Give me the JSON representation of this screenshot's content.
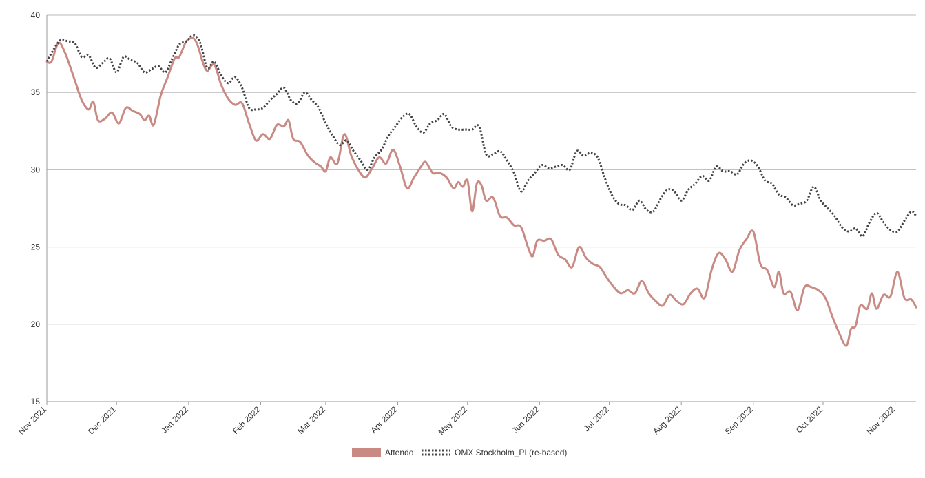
{
  "chart_data": {
    "type": "line",
    "title": "",
    "xlabel": "",
    "ylabel": "",
    "ylim": [
      15,
      40
    ],
    "yticks": [
      15,
      20,
      25,
      30,
      35,
      40
    ],
    "xlim": [
      "2021-11-01",
      "2022-11-10"
    ],
    "xtick_labels": [
      "Nov 2021",
      "Dec 2021",
      "Jan 2022",
      "Feb 2022",
      "Mar 2022",
      "Apr 2022",
      "May 2022",
      "Jun 2022",
      "Jul 2022",
      "Aug 2022",
      "Sep 2022",
      "Oct 2022",
      "Nov 2022"
    ],
    "xtick_dates": [
      "2021-11-01",
      "2021-12-01",
      "2022-01-01",
      "2022-02-01",
      "2022-03-01",
      "2022-04-01",
      "2022-05-01",
      "2022-06-01",
      "2022-07-01",
      "2022-08-01",
      "2022-09-01",
      "2022-10-01",
      "2022-11-01"
    ],
    "grid": "horizontal",
    "legend_position": "bottom-center",
    "series": [
      {
        "name": "Attendo",
        "color": "#c98a84",
        "style": "solid",
        "points": [
          [
            "2021-11-01",
            37.0
          ],
          [
            "2021-11-03",
            37.0
          ],
          [
            "2021-11-06",
            38.2
          ],
          [
            "2021-11-09",
            37.5
          ],
          [
            "2021-11-13",
            35.8
          ],
          [
            "2021-11-16",
            34.5
          ],
          [
            "2021-11-19",
            33.9
          ],
          [
            "2021-11-21",
            34.4
          ],
          [
            "2021-11-23",
            33.2
          ],
          [
            "2021-11-26",
            33.3
          ],
          [
            "2021-11-29",
            33.7
          ],
          [
            "2021-12-02",
            33.0
          ],
          [
            "2021-12-05",
            34.0
          ],
          [
            "2021-12-08",
            33.8
          ],
          [
            "2021-12-11",
            33.6
          ],
          [
            "2021-12-13",
            33.2
          ],
          [
            "2021-12-15",
            33.5
          ],
          [
            "2021-12-17",
            32.9
          ],
          [
            "2021-12-20",
            34.8
          ],
          [
            "2021-12-23",
            36.0
          ],
          [
            "2021-12-26",
            37.2
          ],
          [
            "2021-12-28",
            37.3
          ],
          [
            "2021-12-31",
            38.3
          ],
          [
            "2022-01-03",
            38.5
          ],
          [
            "2022-01-05",
            38.0
          ],
          [
            "2022-01-07",
            37.0
          ],
          [
            "2022-01-09",
            36.4
          ],
          [
            "2022-01-12",
            36.8
          ],
          [
            "2022-01-15",
            35.5
          ],
          [
            "2022-01-18",
            34.6
          ],
          [
            "2022-01-21",
            34.2
          ],
          [
            "2022-01-24",
            34.3
          ],
          [
            "2022-01-27",
            33.0
          ],
          [
            "2022-01-30",
            31.9
          ],
          [
            "2022-02-02",
            32.3
          ],
          [
            "2022-02-05",
            32.0
          ],
          [
            "2022-02-08",
            32.9
          ],
          [
            "2022-02-11",
            32.8
          ],
          [
            "2022-02-13",
            33.2
          ],
          [
            "2022-02-15",
            32.0
          ],
          [
            "2022-02-18",
            31.8
          ],
          [
            "2022-02-21",
            31.0
          ],
          [
            "2022-02-24",
            30.5
          ],
          [
            "2022-02-27",
            30.2
          ],
          [
            "2022-03-01",
            29.9
          ],
          [
            "2022-03-03",
            30.8
          ],
          [
            "2022-03-06",
            30.4
          ],
          [
            "2022-03-09",
            32.3
          ],
          [
            "2022-03-12",
            30.9
          ],
          [
            "2022-03-15",
            30.0
          ],
          [
            "2022-03-18",
            29.5
          ],
          [
            "2022-03-21",
            30.1
          ],
          [
            "2022-03-24",
            30.8
          ],
          [
            "2022-03-27",
            30.4
          ],
          [
            "2022-03-30",
            31.3
          ],
          [
            "2022-04-02",
            30.2
          ],
          [
            "2022-04-05",
            28.8
          ],
          [
            "2022-04-08",
            29.5
          ],
          [
            "2022-04-11",
            30.2
          ],
          [
            "2022-04-13",
            30.5
          ],
          [
            "2022-04-16",
            29.8
          ],
          [
            "2022-04-19",
            29.8
          ],
          [
            "2022-04-22",
            29.5
          ],
          [
            "2022-04-25",
            28.8
          ],
          [
            "2022-04-27",
            29.2
          ],
          [
            "2022-04-29",
            28.9
          ],
          [
            "2022-05-01",
            29.3
          ],
          [
            "2022-05-03",
            27.3
          ],
          [
            "2022-05-05",
            29.1
          ],
          [
            "2022-05-07",
            29.0
          ],
          [
            "2022-05-09",
            28.0
          ],
          [
            "2022-05-12",
            28.2
          ],
          [
            "2022-05-15",
            27.0
          ],
          [
            "2022-05-18",
            26.9
          ],
          [
            "2022-05-21",
            26.4
          ],
          [
            "2022-05-24",
            26.3
          ],
          [
            "2022-05-27",
            25.0
          ],
          [
            "2022-05-29",
            24.4
          ],
          [
            "2022-05-31",
            25.4
          ],
          [
            "2022-06-03",
            25.4
          ],
          [
            "2022-06-06",
            25.5
          ],
          [
            "2022-06-09",
            24.5
          ],
          [
            "2022-06-12",
            24.2
          ],
          [
            "2022-06-15",
            23.7
          ],
          [
            "2022-06-18",
            25.0
          ],
          [
            "2022-06-21",
            24.3
          ],
          [
            "2022-06-24",
            23.9
          ],
          [
            "2022-06-27",
            23.7
          ],
          [
            "2022-06-30",
            23.0
          ],
          [
            "2022-07-03",
            22.4
          ],
          [
            "2022-07-06",
            22.0
          ],
          [
            "2022-07-09",
            22.2
          ],
          [
            "2022-07-12",
            22.0
          ],
          [
            "2022-07-15",
            22.8
          ],
          [
            "2022-07-18",
            22.0
          ],
          [
            "2022-07-21",
            21.5
          ],
          [
            "2022-07-24",
            21.2
          ],
          [
            "2022-07-27",
            21.9
          ],
          [
            "2022-07-30",
            21.5
          ],
          [
            "2022-08-02",
            21.3
          ],
          [
            "2022-08-05",
            22.0
          ],
          [
            "2022-08-08",
            22.3
          ],
          [
            "2022-08-11",
            21.7
          ],
          [
            "2022-08-14",
            23.5
          ],
          [
            "2022-08-17",
            24.6
          ],
          [
            "2022-08-20",
            24.2
          ],
          [
            "2022-08-23",
            23.4
          ],
          [
            "2022-08-26",
            24.8
          ],
          [
            "2022-08-29",
            25.5
          ],
          [
            "2022-09-01",
            26.0
          ],
          [
            "2022-09-04",
            23.9
          ],
          [
            "2022-09-07",
            23.5
          ],
          [
            "2022-09-10",
            22.4
          ],
          [
            "2022-09-12",
            23.4
          ],
          [
            "2022-09-14",
            22.0
          ],
          [
            "2022-09-17",
            22.1
          ],
          [
            "2022-09-20",
            20.9
          ],
          [
            "2022-09-23",
            22.4
          ],
          [
            "2022-09-26",
            22.4
          ],
          [
            "2022-09-29",
            22.2
          ],
          [
            "2022-10-02",
            21.7
          ],
          [
            "2022-10-05",
            20.5
          ],
          [
            "2022-10-08",
            19.4
          ],
          [
            "2022-10-11",
            18.6
          ],
          [
            "2022-10-13",
            19.7
          ],
          [
            "2022-10-15",
            19.9
          ],
          [
            "2022-10-17",
            21.2
          ],
          [
            "2022-10-20",
            21.0
          ],
          [
            "2022-10-22",
            22.0
          ],
          [
            "2022-10-24",
            21.0
          ],
          [
            "2022-10-27",
            21.9
          ],
          [
            "2022-10-30",
            21.8
          ],
          [
            "2022-11-02",
            23.4
          ],
          [
            "2022-11-05",
            21.7
          ],
          [
            "2022-11-08",
            21.6
          ],
          [
            "2022-11-10",
            21.1
          ]
        ]
      },
      {
        "name": "OMX Stockholm_PI (re-based)",
        "color": "#444448",
        "style": "dotted",
        "points": [
          [
            "2021-11-01",
            37.0
          ],
          [
            "2021-11-04",
            37.8
          ],
          [
            "2021-11-07",
            38.4
          ],
          [
            "2021-11-10",
            38.3
          ],
          [
            "2021-11-13",
            38.2
          ],
          [
            "2021-11-16",
            37.3
          ],
          [
            "2021-11-19",
            37.4
          ],
          [
            "2021-11-22",
            36.6
          ],
          [
            "2021-11-25",
            36.9
          ],
          [
            "2021-11-28",
            37.2
          ],
          [
            "2021-12-01",
            36.3
          ],
          [
            "2021-12-04",
            37.3
          ],
          [
            "2021-12-07",
            37.1
          ],
          [
            "2021-12-10",
            36.9
          ],
          [
            "2021-12-13",
            36.3
          ],
          [
            "2021-12-16",
            36.5
          ],
          [
            "2021-12-19",
            36.7
          ],
          [
            "2021-12-22",
            36.3
          ],
          [
            "2021-12-25",
            37.2
          ],
          [
            "2021-12-28",
            38.1
          ],
          [
            "2021-12-31",
            38.3
          ],
          [
            "2022-01-03",
            38.7
          ],
          [
            "2022-01-06",
            38.2
          ],
          [
            "2022-01-09",
            36.6
          ],
          [
            "2022-01-12",
            37.0
          ],
          [
            "2022-01-15",
            36.1
          ],
          [
            "2022-01-18",
            35.6
          ],
          [
            "2022-01-21",
            36.0
          ],
          [
            "2022-01-24",
            35.3
          ],
          [
            "2022-01-27",
            34.0
          ],
          [
            "2022-01-30",
            33.9
          ],
          [
            "2022-02-02",
            34.0
          ],
          [
            "2022-02-05",
            34.5
          ],
          [
            "2022-02-08",
            34.9
          ],
          [
            "2022-02-11",
            35.3
          ],
          [
            "2022-02-14",
            34.5
          ],
          [
            "2022-02-17",
            34.3
          ],
          [
            "2022-02-20",
            35.0
          ],
          [
            "2022-02-23",
            34.5
          ],
          [
            "2022-02-26",
            34.0
          ],
          [
            "2022-03-01",
            33.0
          ],
          [
            "2022-03-04",
            32.2
          ],
          [
            "2022-03-07",
            31.6
          ],
          [
            "2022-03-10",
            31.9
          ],
          [
            "2022-03-13",
            31.2
          ],
          [
            "2022-03-16",
            30.6
          ],
          [
            "2022-03-19",
            30.0
          ],
          [
            "2022-03-22",
            30.8
          ],
          [
            "2022-03-25",
            31.3
          ],
          [
            "2022-03-28",
            32.2
          ],
          [
            "2022-03-31",
            32.8
          ],
          [
            "2022-04-03",
            33.4
          ],
          [
            "2022-04-06",
            33.6
          ],
          [
            "2022-04-09",
            32.8
          ],
          [
            "2022-04-12",
            32.4
          ],
          [
            "2022-04-15",
            33.0
          ],
          [
            "2022-04-18",
            33.2
          ],
          [
            "2022-04-21",
            33.6
          ],
          [
            "2022-04-24",
            32.8
          ],
          [
            "2022-04-27",
            32.6
          ],
          [
            "2022-04-30",
            32.6
          ],
          [
            "2022-05-03",
            32.6
          ],
          [
            "2022-05-06",
            32.8
          ],
          [
            "2022-05-09",
            31.0
          ],
          [
            "2022-05-12",
            31.0
          ],
          [
            "2022-05-15",
            31.2
          ],
          [
            "2022-05-18",
            30.6
          ],
          [
            "2022-05-21",
            29.8
          ],
          [
            "2022-05-24",
            28.6
          ],
          [
            "2022-05-27",
            29.3
          ],
          [
            "2022-05-30",
            29.8
          ],
          [
            "2022-06-02",
            30.3
          ],
          [
            "2022-06-05",
            30.1
          ],
          [
            "2022-06-08",
            30.2
          ],
          [
            "2022-06-11",
            30.3
          ],
          [
            "2022-06-14",
            30.0
          ],
          [
            "2022-06-17",
            31.2
          ],
          [
            "2022-06-20",
            30.9
          ],
          [
            "2022-06-23",
            31.1
          ],
          [
            "2022-06-26",
            30.8
          ],
          [
            "2022-06-29",
            29.5
          ],
          [
            "2022-07-02",
            28.4
          ],
          [
            "2022-07-05",
            27.8
          ],
          [
            "2022-07-08",
            27.7
          ],
          [
            "2022-07-11",
            27.4
          ],
          [
            "2022-07-14",
            28.0
          ],
          [
            "2022-07-17",
            27.4
          ],
          [
            "2022-07-20",
            27.3
          ],
          [
            "2022-07-23",
            28.1
          ],
          [
            "2022-07-26",
            28.7
          ],
          [
            "2022-07-29",
            28.6
          ],
          [
            "2022-08-01",
            28.0
          ],
          [
            "2022-08-04",
            28.7
          ],
          [
            "2022-08-07",
            29.1
          ],
          [
            "2022-08-10",
            29.6
          ],
          [
            "2022-08-13",
            29.3
          ],
          [
            "2022-08-16",
            30.2
          ],
          [
            "2022-08-19",
            29.9
          ],
          [
            "2022-08-22",
            29.9
          ],
          [
            "2022-08-25",
            29.7
          ],
          [
            "2022-08-28",
            30.4
          ],
          [
            "2022-08-31",
            30.6
          ],
          [
            "2022-09-03",
            30.2
          ],
          [
            "2022-09-06",
            29.3
          ],
          [
            "2022-09-09",
            29.1
          ],
          [
            "2022-09-12",
            28.4
          ],
          [
            "2022-09-15",
            28.2
          ],
          [
            "2022-09-18",
            27.7
          ],
          [
            "2022-09-21",
            27.8
          ],
          [
            "2022-09-24",
            28.0
          ],
          [
            "2022-09-27",
            28.9
          ],
          [
            "2022-09-30",
            28.0
          ],
          [
            "2022-10-03",
            27.5
          ],
          [
            "2022-10-06",
            27.0
          ],
          [
            "2022-10-09",
            26.3
          ],
          [
            "2022-10-12",
            26.0
          ],
          [
            "2022-10-15",
            26.2
          ],
          [
            "2022-10-18",
            25.7
          ],
          [
            "2022-10-21",
            26.6
          ],
          [
            "2022-10-24",
            27.2
          ],
          [
            "2022-10-27",
            26.6
          ],
          [
            "2022-10-30",
            26.1
          ],
          [
            "2022-11-02",
            26.0
          ],
          [
            "2022-11-05",
            26.7
          ],
          [
            "2022-11-08",
            27.3
          ],
          [
            "2022-11-10",
            27.0
          ]
        ]
      }
    ]
  }
}
